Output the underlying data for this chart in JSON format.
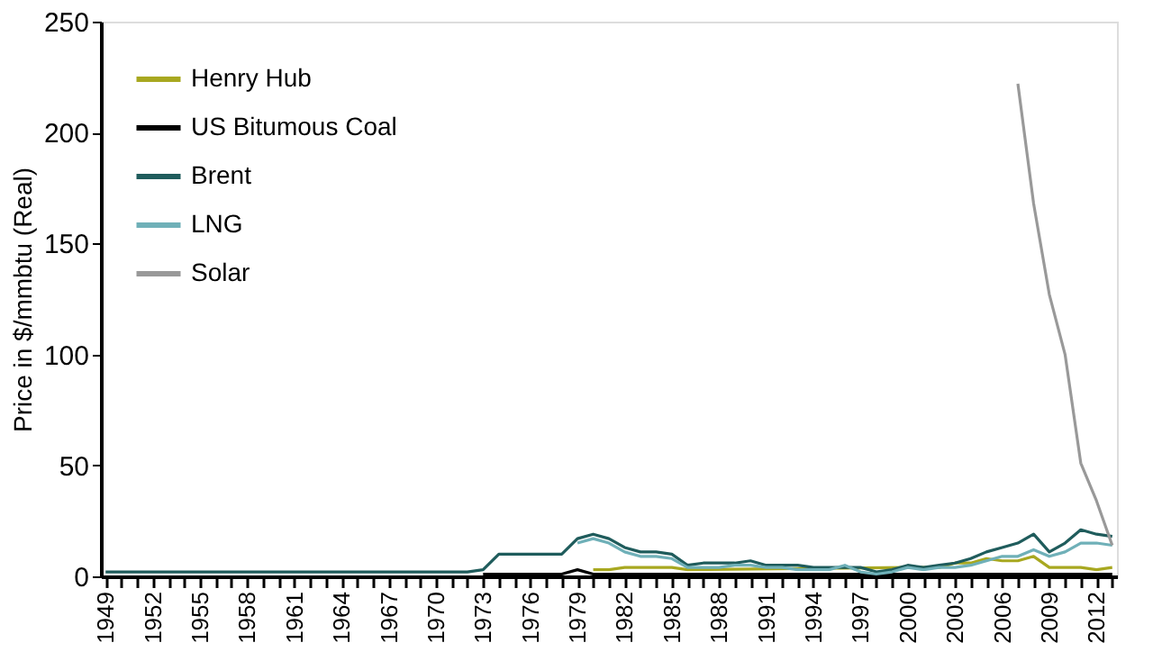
{
  "chart_data": {
    "type": "line",
    "ylabel": "Price in $/mmbtu (Real)",
    "categories": [
      "1949",
      null,
      null,
      "1952",
      null,
      null,
      "1955",
      null,
      null,
      "1958",
      null,
      null,
      "1961",
      null,
      null,
      "1964",
      null,
      null,
      "1967",
      null,
      null,
      "1970",
      null,
      null,
      "1973",
      null,
      null,
      "1976",
      null,
      null,
      "1979",
      null,
      null,
      "1982",
      null,
      null,
      "1985",
      null,
      null,
      "1988",
      null,
      null,
      "1991",
      null,
      null,
      "1994",
      null,
      null,
      "1997",
      null,
      null,
      "2000",
      null,
      null,
      "2003",
      null,
      null,
      "2006",
      null,
      null,
      "2009",
      null,
      null,
      "2012",
      null
    ],
    "ylim": [
      0,
      250
    ],
    "yticks": [
      0,
      50,
      100,
      150,
      200,
      250
    ],
    "grid": false,
    "legend": "top left",
    "series": [
      {
        "name": "Henry Hub",
        "color": "#a8a820",
        "values": [
          null,
          null,
          null,
          null,
          null,
          null,
          null,
          null,
          null,
          null,
          null,
          null,
          null,
          null,
          null,
          null,
          null,
          null,
          null,
          null,
          null,
          null,
          null,
          null,
          null,
          null,
          null,
          null,
          null,
          null,
          null,
          3,
          3,
          4,
          4,
          4,
          4,
          3,
          null,
          null,
          null,
          null,
          null,
          null,
          null,
          null,
          null,
          null,
          null,
          null,
          null,
          4,
          4,
          4,
          6,
          6,
          8,
          7,
          7,
          9,
          4,
          4,
          4,
          3,
          4
        ]
      },
      {
        "name": "US Bitumous Coal",
        "color": "#000000",
        "values": [
          null,
          null,
          null,
          null,
          null,
          null,
          null,
          null,
          null,
          null,
          null,
          null,
          null,
          null,
          null,
          null,
          null,
          null,
          null,
          null,
          null,
          null,
          null,
          null,
          1,
          1,
          1,
          1,
          1,
          1,
          3,
          1,
          1,
          1,
          1,
          1,
          1,
          1,
          1,
          1,
          1,
          1,
          1,
          1,
          1,
          1,
          1,
          1,
          1,
          1,
          1,
          1,
          1,
          1,
          1,
          1,
          1,
          1,
          1,
          1,
          1,
          1,
          1,
          1,
          1
        ]
      },
      {
        "name": "Brent",
        "color": "#1f5c5c",
        "values": [
          2,
          2,
          2,
          2,
          2,
          2,
          2,
          2,
          2,
          2,
          2,
          2,
          2,
          2,
          2,
          2,
          2,
          2,
          2,
          2,
          2,
          2,
          2,
          2,
          3,
          10,
          10,
          10,
          10,
          10,
          17,
          19,
          17,
          13,
          11,
          11,
          10,
          5,
          6,
          6,
          6,
          7,
          5,
          5,
          5,
          4,
          4,
          4,
          4,
          2,
          3,
          5,
          4,
          5,
          6,
          8,
          11,
          13,
          15,
          19,
          11,
          15,
          21,
          19,
          18
        ]
      },
      {
        "name": "LNG",
        "color": "#6fb0b8",
        "values": [
          null,
          null,
          null,
          null,
          null,
          null,
          null,
          null,
          null,
          null,
          null,
          null,
          null,
          null,
          null,
          null,
          null,
          null,
          null,
          null,
          null,
          null,
          null,
          null,
          null,
          null,
          null,
          null,
          null,
          null,
          15,
          17,
          15,
          11,
          9,
          9,
          8,
          4,
          4,
          4,
          5,
          5,
          4,
          4,
          3,
          3,
          3,
          5,
          2,
          1,
          2,
          4,
          3,
          4,
          4,
          5,
          7,
          9,
          9,
          12,
          9,
          11,
          15,
          15,
          14
        ]
      },
      {
        "name": "Solar",
        "color": "#999999",
        "values": [
          null,
          null,
          null,
          null,
          null,
          null,
          null,
          null,
          null,
          null,
          null,
          null,
          null,
          null,
          null,
          null,
          null,
          null,
          null,
          null,
          null,
          null,
          null,
          null,
          null,
          null,
          null,
          null,
          null,
          null,
          null,
          null,
          null,
          null,
          null,
          null,
          null,
          null,
          null,
          null,
          null,
          null,
          null,
          null,
          null,
          null,
          null,
          null,
          null,
          null,
          null,
          null,
          null,
          null,
          null,
          null,
          null,
          null,
          222,
          168,
          127,
          100,
          51,
          34,
          14
        ]
      }
    ]
  }
}
